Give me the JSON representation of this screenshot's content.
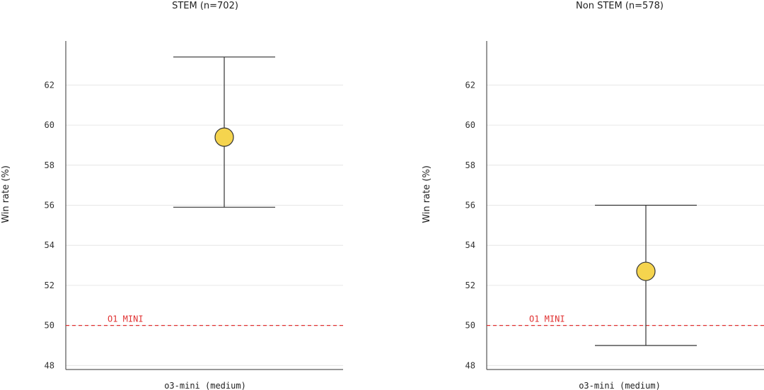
{
  "chart_data": [
    {
      "type": "scatter",
      "title": "STEM (n=702)",
      "ylabel": "Win rate (%)",
      "ylim": [
        47.8,
        64.2
      ],
      "yticks": [
        48,
        50,
        52,
        54,
        56,
        58,
        60,
        62
      ],
      "grid": true,
      "categories": [
        "o3-mini (medium)"
      ],
      "points": [
        {
          "category": "o3-mini (medium)",
          "value": 59.4,
          "ci_low": 55.9,
          "ci_high": 63.4
        }
      ],
      "reference_line": {
        "label": "O1 MINI",
        "value": 50
      }
    },
    {
      "type": "scatter",
      "title": "Non STEM (n=578)",
      "ylabel": "Win rate (%)",
      "ylim": [
        47.8,
        64.2
      ],
      "yticks": [
        48,
        50,
        52,
        54,
        56,
        58,
        60,
        62
      ],
      "grid": true,
      "categories": [
        "o3-mini (medium)"
      ],
      "points": [
        {
          "category": "o3-mini (medium)",
          "value": 52.7,
          "ci_low": 49.0,
          "ci_high": 56.0
        }
      ],
      "reference_line": {
        "label": "O1 MINI",
        "value": 50
      }
    }
  ],
  "style": {
    "marker_fill": "#f5d44e",
    "marker_stroke": "#333333",
    "errorbar_color": "#333333",
    "reference_color": "#e03131",
    "grid_color": "#e6e6e6",
    "axis_color": "#333333"
  }
}
